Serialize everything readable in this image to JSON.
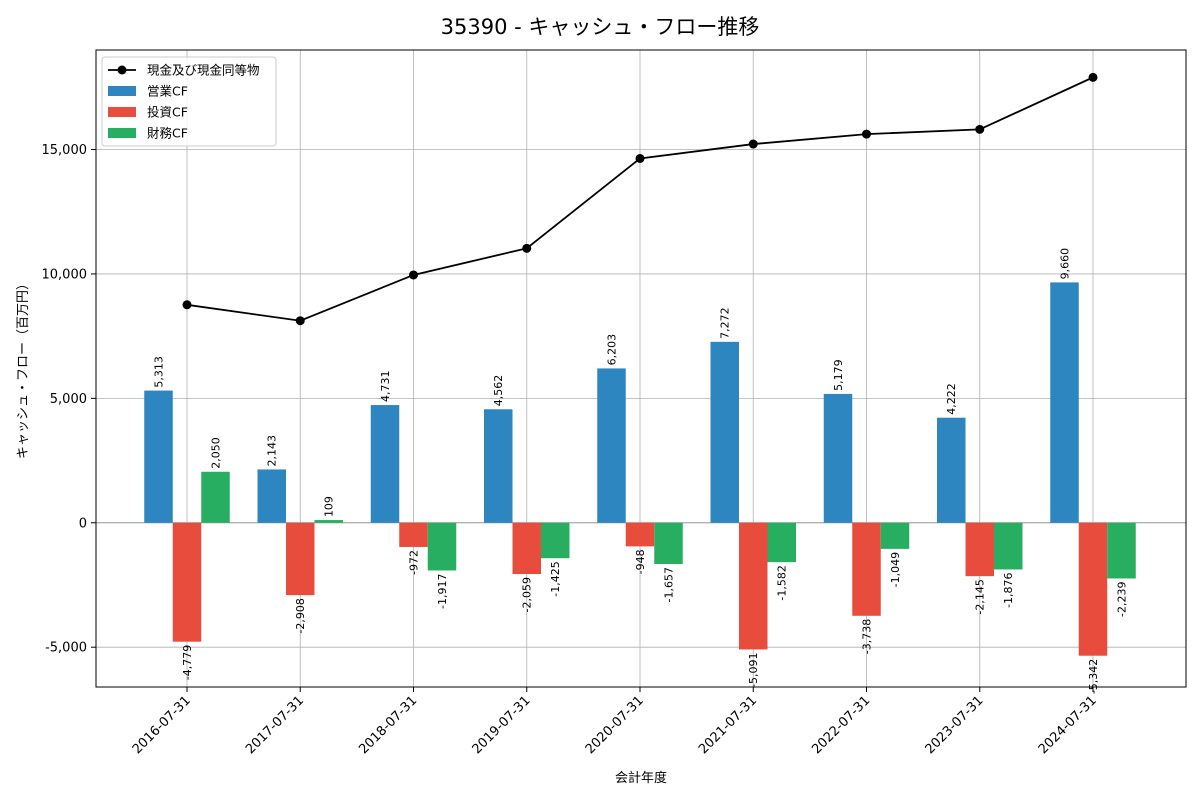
{
  "chart_data": {
    "type": "bar",
    "title": "35390 - キャッシュ・フロー推移",
    "xlabel": "会計年度",
    "ylabel": "キャッシュ・フロー（百万円）",
    "ylim": [
      -6600,
      19000
    ],
    "yticks": [
      -5000,
      0,
      5000,
      10000,
      15000
    ],
    "ytick_labels": [
      "-5,000",
      "0",
      "5,000",
      "10,000",
      "15,000"
    ],
    "grid": true,
    "legend_position": "top-left",
    "categories": [
      "2016-07-31",
      "2017-07-31",
      "2018-07-31",
      "2019-07-31",
      "2020-07-31",
      "2021-07-31",
      "2022-07-31",
      "2023-07-31",
      "2024-07-31"
    ],
    "series": [
      {
        "name": "営業CF",
        "kind": "bar",
        "color": "#2e86c1",
        "values": [
          5313,
          2143,
          4731,
          4562,
          6203,
          7272,
          5179,
          4222,
          9660
        ],
        "labels": [
          "5,313",
          "2,143",
          "4,731",
          "4,562",
          "6,203",
          "7,272",
          "5,179",
          "4,222",
          "9,660"
        ]
      },
      {
        "name": "投資CF",
        "kind": "bar",
        "color": "#e74c3c",
        "values": [
          -4779,
          -2908,
          -972,
          -2059,
          -948,
          -5091,
          -3738,
          -2145,
          -5342
        ],
        "labels": [
          "-4,779",
          "-2,908",
          "-972",
          "-2,059",
          "-948",
          "-5,091",
          "-3,738",
          "-2,145",
          "-5,342"
        ]
      },
      {
        "name": "財務CF",
        "kind": "bar",
        "color": "#27ae60",
        "values": [
          2050,
          109,
          -1917,
          -1425,
          -1657,
          -1582,
          -1049,
          -1876,
          -2239
        ],
        "labels": [
          "2,050",
          "109",
          "-1,917",
          "-1,425",
          "-1,657",
          "-1,582",
          "-1,049",
          "-1,876",
          "-2,239"
        ]
      },
      {
        "name": "現金及び現金同等物",
        "kind": "line",
        "color": "#000000",
        "values": [
          8760,
          8120,
          9960,
          11030,
          14640,
          15220,
          15620,
          15810,
          17900
        ]
      }
    ]
  }
}
